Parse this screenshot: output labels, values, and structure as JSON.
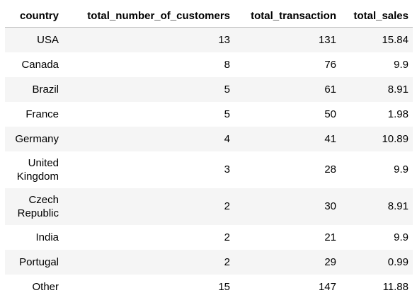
{
  "table": {
    "columns": [
      "country",
      "total_number_of_customers",
      "total_transaction",
      "total_sales"
    ],
    "rows": [
      [
        "USA",
        "13",
        "131",
        "15.84"
      ],
      [
        "Canada",
        "8",
        "76",
        "9.9"
      ],
      [
        "Brazil",
        "5",
        "61",
        "8.91"
      ],
      [
        "France",
        "5",
        "50",
        "1.98"
      ],
      [
        "Germany",
        "4",
        "41",
        "10.89"
      ],
      [
        "United Kingdom",
        "3",
        "28",
        "9.9"
      ],
      [
        "Czech Republic",
        "2",
        "30",
        "8.91"
      ],
      [
        "India",
        "2",
        "21",
        "9.9"
      ],
      [
        "Portugal",
        "2",
        "29",
        "0.99"
      ],
      [
        "Other",
        "15",
        "147",
        "11.88"
      ]
    ]
  },
  "colors": {
    "stripe": "#f5f5f5",
    "header_rule": "#bdbdbd"
  }
}
